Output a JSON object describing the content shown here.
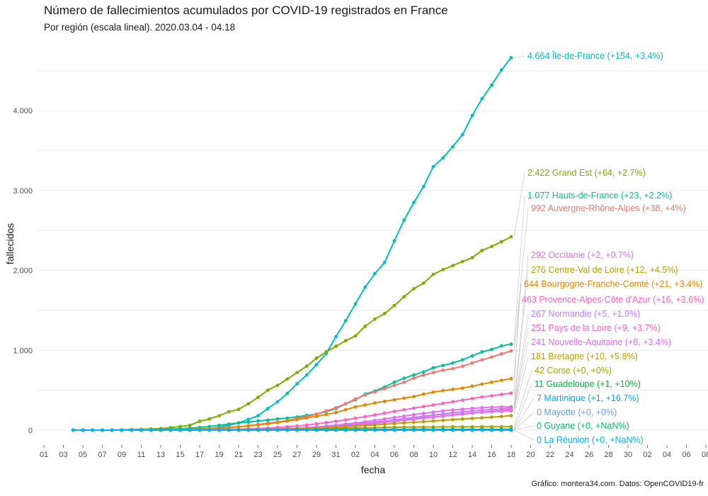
{
  "title": "Número de fallecimientos acumulados por COVID-19 registrados en France",
  "subtitle": "Por región (escala lineal). 2020.03.04 - 04.18",
  "caption": "Gráfico: montera34.com. Datos: OpenCOVID19-fr",
  "chart_data": {
    "type": "line",
    "title": "Número de fallecimientos acumulados por COVID-19 registrados en France",
    "subtitle": "Por región (escala lineal). 2020.03.04 - 04.18",
    "xlabel": "fecha",
    "ylabel": "fallecidos",
    "x_tick_labels": [
      "01",
      "03",
      "05",
      "07",
      "09",
      "11",
      "13",
      "15",
      "17",
      "19",
      "21",
      "23",
      "25",
      "27",
      "29",
      "31",
      "02",
      "04",
      "06",
      "08",
      "10",
      "12",
      "14",
      "16",
      "18",
      "20",
      "22",
      "24",
      "26",
      "28",
      "30",
      "02",
      "04",
      "06",
      "08"
    ],
    "y_ticks": [
      0,
      1000,
      2000,
      3000,
      4000
    ],
    "y_tick_labels": [
      "0",
      "1.000",
      "2.000",
      "3.000",
      "4.000"
    ],
    "ylim": [
      -200,
      4800
    ],
    "grid": true,
    "legend": "none (direct labels at right)",
    "x_day_index_note": "index 0 = 03-01; data from 03-04 (index 3) to 04-18 (index 48)",
    "series": [
      {
        "name": "Île-de-France",
        "label": "4.664 Île-de-France (+154, +3.4%)",
        "color": "#00bfc4",
        "values": [
          0,
          0,
          0,
          0,
          0,
          3,
          4,
          5,
          8,
          10,
          15,
          20,
          35,
          60,
          90,
          135,
          180,
          270,
          355,
          460,
          580,
          690,
          820,
          960,
          1170,
          1370,
          1580,
          1790,
          1960,
          2100,
          2370,
          2630,
          2850,
          3050,
          3300,
          3410,
          3550,
          3700,
          3940,
          4150,
          4320,
          4510,
          4664
        ]
      },
      {
        "name": "Grand Est",
        "label": "2.422 Grand Est (+64, +2.7%)",
        "color": "#7cae00",
        "values": [
          0,
          0,
          0,
          0,
          0,
          4,
          6,
          10,
          15,
          20,
          30,
          45,
          60,
          110,
          140,
          180,
          230,
          260,
          330,
          410,
          500,
          560,
          640,
          720,
          800,
          900,
          980,
          1050,
          1120,
          1180,
          1300,
          1390,
          1460,
          1560,
          1670,
          1770,
          1840,
          1950,
          2010,
          2060,
          2110,
          2160,
          2250,
          2300,
          2358,
          2422
        ]
      },
      {
        "name": "Hauts-de-France",
        "label": "1.077 Hauts-de-France (+23, +2.2%)",
        "color": "#00c19a",
        "values": [
          0,
          0,
          0,
          0,
          0,
          1,
          2,
          3,
          5,
          8,
          12,
          18,
          25,
          33,
          45,
          60,
          75,
          90,
          100,
          115,
          125,
          140,
          150,
          165,
          185,
          200,
          230,
          270,
          330,
          380,
          450,
          490,
          540,
          600,
          650,
          690,
          730,
          780,
          810,
          840,
          880,
          930,
          980,
          1010,
          1054,
          1077
        ]
      },
      {
        "name": "Auvergne-Rhône-Alpes",
        "label": "992 Auvergne-Rhône-Alpes (+38, +4%)",
        "color": "#f8766d",
        "values": [
          0,
          0,
          0,
          0,
          0,
          1,
          1,
          2,
          3,
          4,
          6,
          9,
          14,
          20,
          30,
          40,
          55,
          70,
          85,
          100,
          120,
          145,
          170,
          200,
          240,
          280,
          330,
          390,
          440,
          480,
          520,
          560,
          600,
          650,
          690,
          720,
          750,
          770,
          800,
          840,
          880,
          915,
          954,
          992
        ]
      },
      {
        "name": "Occitanie",
        "label": "292 Occitanie (+2, +0.7%)",
        "color": "#e76bf3",
        "values": [
          0,
          0,
          0,
          0,
          0,
          0,
          1,
          1,
          2,
          3,
          4,
          5,
          7,
          10,
          14,
          19,
          25,
          32,
          40,
          50,
          62,
          75,
          90,
          105,
          122,
          140,
          158,
          176,
          194,
          210,
          225,
          240,
          252,
          262,
          272,
          280,
          286,
          290,
          292
        ]
      },
      {
        "name": "Centre-Val de Loire",
        "label": "276 Centre-Val de Loire (+12, +4.5%)",
        "color": "#b79f00",
        "values": [
          0,
          0,
          0,
          0,
          0,
          0,
          0,
          1,
          1,
          2,
          3,
          4,
          6,
          8,
          11,
          15,
          20,
          26,
          33,
          42,
          52,
          64,
          78,
          92,
          108,
          124,
          140,
          156,
          172,
          188,
          202,
          216,
          228,
          240,
          250,
          258,
          264,
          276
        ]
      },
      {
        "name": "Bourgogne-Franche-Comté",
        "label": "644 Bourgogne-Franche-Comté (+21, +3.4%)",
        "color": "#e58700",
        "values": [
          0,
          0,
          0,
          0,
          0,
          1,
          2,
          3,
          5,
          7,
          10,
          14,
          19,
          25,
          33,
          42,
          52,
          64,
          78,
          94,
          112,
          132,
          152,
          172,
          195,
          220,
          255,
          290,
          315,
          340,
          360,
          380,
          400,
          420,
          450,
          475,
          495,
          510,
          525,
          550,
          575,
          600,
          623,
          644
        ]
      },
      {
        "name": "Provence-Alpes-Côte d'Azur",
        "label": "463 Provence-Alpes-Côte d'Azur (+16, +3.6%)",
        "color": "#ff61c3",
        "values": [
          0,
          0,
          0,
          0,
          0,
          0,
          1,
          2,
          3,
          4,
          6,
          8,
          11,
          15,
          20,
          26,
          33,
          42,
          52,
          64,
          78,
          94,
          110,
          128,
          148,
          168,
          190,
          212,
          234,
          255,
          275,
          295,
          315,
          335,
          355,
          375,
          395,
          415,
          430,
          447,
          463
        ]
      },
      {
        "name": "Normandie",
        "label": "267 Normandie (+5, +1.9%)",
        "color": "#c77cff",
        "values": [
          0,
          0,
          0,
          0,
          0,
          0,
          0,
          1,
          1,
          2,
          3,
          4,
          5,
          7,
          9,
          12,
          15,
          19,
          24,
          30,
          37,
          45,
          54,
          64,
          75,
          87,
          100,
          114,
          128,
          143,
          158,
          172,
          186,
          200,
          214,
          228,
          240,
          250,
          256,
          262,
          267
        ]
      },
      {
        "name": "Pays de la Loire",
        "label": "251 Pays de la Loire (+9, +3.7%)",
        "color": "#fd61d1",
        "values": [
          0,
          0,
          0,
          0,
          0,
          0,
          0,
          0,
          1,
          1,
          2,
          3,
          4,
          5,
          7,
          9,
          12,
          15,
          19,
          24,
          30,
          37,
          45,
          54,
          64,
          75,
          87,
          99,
          112,
          125,
          138,
          151,
          164,
          177,
          190,
          203,
          215,
          226,
          234,
          242,
          251
        ]
      },
      {
        "name": "Nouvelle-Aquitaine",
        "label": "241 Nouvelle-Aquitaine (+8, +3.4%)",
        "color": "#dc71fa",
        "values": [
          0,
          0,
          0,
          0,
          0,
          0,
          0,
          0,
          1,
          1,
          2,
          3,
          4,
          5,
          6,
          8,
          10,
          13,
          17,
          22,
          28,
          35,
          43,
          52,
          62,
          73,
          85,
          97,
          110,
          123,
          136,
          149,
          162,
          175,
          188,
          200,
          212,
          222,
          230,
          233,
          241
        ]
      },
      {
        "name": "Bretagne",
        "label": "181 Bretagne (+10, +5.8%)",
        "color": "#c09b00",
        "values": [
          0,
          0,
          0,
          0,
          0,
          0,
          0,
          0,
          1,
          1,
          1,
          2,
          3,
          4,
          5,
          6,
          8,
          10,
          12,
          15,
          19,
          24,
          30,
          36,
          43,
          50,
          58,
          66,
          74,
          82,
          90,
          98,
          106,
          114,
          122,
          130,
          138,
          146,
          154,
          162,
          171,
          181
        ]
      },
      {
        "name": "Corse",
        "label": "42 Corse (+0, +0%)",
        "color": "#a3a500",
        "values": [
          0,
          0,
          0,
          0,
          0,
          0,
          0,
          1,
          1,
          2,
          3,
          4,
          5,
          6,
          8,
          10,
          12,
          14,
          17,
          20,
          23,
          26,
          29,
          31,
          33,
          35,
          36,
          37,
          38,
          39,
          40,
          41,
          41,
          42,
          42,
          42,
          42,
          42
        ]
      },
      {
        "name": "Guadeloupe",
        "label": "11 Guadeloupe (+1, +10%)",
        "color": "#00ba38",
        "values": [
          0,
          0,
          0,
          0,
          0,
          0,
          0,
          0,
          0,
          0,
          0,
          0,
          0,
          0,
          1,
          1,
          2,
          2,
          3,
          3,
          4,
          4,
          5,
          5,
          6,
          6,
          7,
          7,
          8,
          8,
          9,
          9,
          9,
          10,
          10,
          10,
          10,
          10,
          10,
          10,
          10,
          10,
          10,
          10,
          10,
          11
        ]
      },
      {
        "name": "Martinique",
        "label": "7 Martinique (+1, +16.7%)",
        "color": "#00a9ff",
        "values": [
          0,
          0,
          0,
          0,
          0,
          0,
          0,
          0,
          0,
          0,
          0,
          0,
          0,
          0,
          0,
          0,
          1,
          1,
          1,
          2,
          2,
          2,
          3,
          3,
          3,
          4,
          4,
          4,
          5,
          5,
          5,
          5,
          6,
          6,
          6,
          6,
          6,
          6,
          6,
          6,
          6,
          6,
          6,
          6,
          6,
          7
        ]
      },
      {
        "name": "Mayotte",
        "label": "0 Mayotte (+0, +0%)",
        "color": "#619cff",
        "values": [
          0,
          0,
          0,
          0,
          0,
          0,
          0,
          0,
          0,
          0,
          0,
          0,
          0,
          0,
          0,
          0,
          0,
          0,
          0,
          0,
          0,
          0,
          0,
          0,
          0,
          0,
          0,
          0,
          0,
          0,
          0,
          0,
          0,
          0,
          0,
          0,
          0,
          0,
          0,
          0,
          0,
          0,
          0,
          0,
          0,
          0
        ]
      },
      {
        "name": "Guyane",
        "label": "0 Guyane (+0, +NaN%)",
        "color": "#00be67",
        "values": [
          0,
          0,
          0,
          0,
          0,
          0,
          0,
          0,
          0,
          0,
          0,
          0,
          0,
          0,
          0,
          0,
          0,
          0,
          0,
          0,
          0,
          0,
          0,
          0,
          0,
          0,
          0,
          0,
          0,
          0,
          0,
          0,
          0,
          0,
          0,
          0,
          0,
          0,
          0,
          0,
          0,
          0,
          0,
          0,
          0,
          0
        ]
      },
      {
        "name": "La Réunion",
        "label": "0 La Réunion (+0, +NaN%)",
        "color": "#00b0f6",
        "values": [
          0,
          0,
          0,
          0,
          0,
          0,
          0,
          0,
          0,
          0,
          0,
          0,
          0,
          0,
          0,
          0,
          0,
          0,
          0,
          0,
          0,
          0,
          0,
          0,
          0,
          0,
          0,
          0,
          0,
          0,
          0,
          0,
          0,
          0,
          0,
          0,
          0,
          0,
          0,
          0,
          0,
          0,
          0,
          0,
          0,
          0
        ]
      }
    ]
  }
}
